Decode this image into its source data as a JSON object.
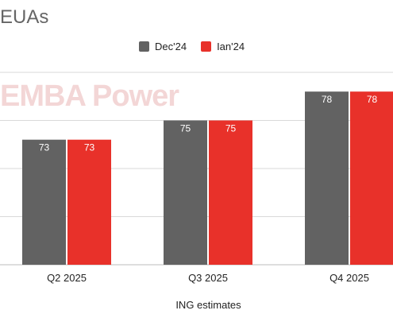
{
  "chart_data": {
    "type": "bar",
    "title": "EUAs",
    "xlabel": "ING estimates",
    "ylabel": "",
    "categories": [
      "Q2 2025",
      "Q3 2025",
      "Q4 2025"
    ],
    "series": [
      {
        "name": "Dec'24",
        "values": [
          73,
          75,
          78
        ],
        "color": "#626262"
      },
      {
        "name": "Ian'24",
        "values": [
          73,
          75,
          78
        ],
        "color": "#e8312a"
      }
    ],
    "ylim": [
      60,
      80
    ],
    "grid": true,
    "legend_position": "top-center"
  },
  "watermark": "EMBA Power"
}
